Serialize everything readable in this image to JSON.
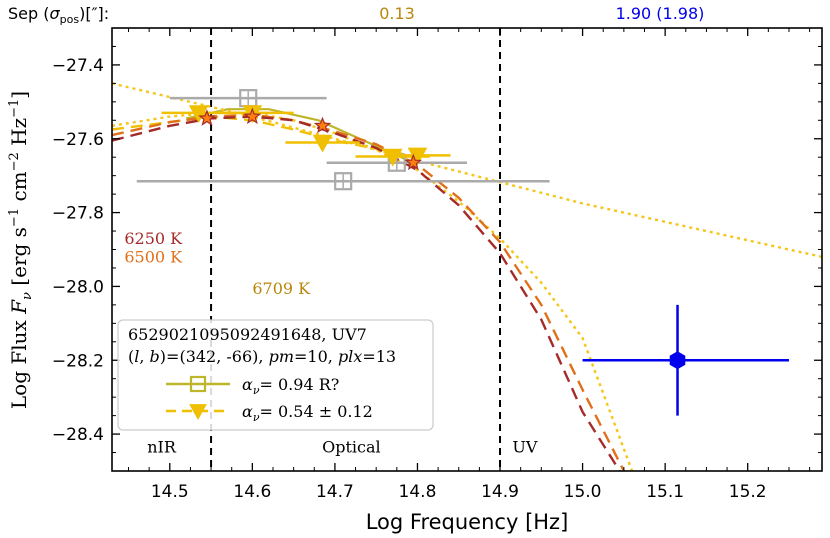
{
  "chart_data": {
    "type": "scatter",
    "xlabel": "Log Frequency [Hz]",
    "ylabel_main": "Log Flux ",
    "ylabel_sym": "F",
    "ylabel_sub": "ν",
    "ylabel_units": " [erg s",
    "ylabel_units2": " cm",
    "ylabel_units3": " Hz",
    "ylabel_exp1": "−1",
    "ylabel_exp2": "−2",
    "ylabel_exp3": "−1",
    "xlim": [
      14.43,
      15.29
    ],
    "ylim": [
      -28.5,
      -27.3
    ],
    "xticks": [
      14.5,
      14.6,
      14.7,
      14.8,
      14.9,
      15.0,
      15.1,
      15.2
    ],
    "xtick_labels": [
      "14.5",
      "14.6",
      "14.7",
      "14.8",
      "14.9",
      "15.0",
      "15.1",
      "15.2"
    ],
    "yticks": [
      -27.4,
      -27.6,
      -27.8,
      -28.0,
      -28.2,
      -28.4
    ],
    "ytick_labels": [
      "−27.4",
      "−27.6",
      "−27.8",
      "−28.0",
      "−28.2",
      "−28.4"
    ],
    "band_boundaries": [
      14.55,
      14.9
    ],
    "band_labels": [
      {
        "text": "nIR",
        "x": 14.49,
        "y": -28.45
      },
      {
        "text": "Optical",
        "x": 14.72,
        "y": -28.45
      },
      {
        "text": "UV",
        "x": 14.915,
        "y": -28.45
      }
    ],
    "top_header": {
      "label": "Sep",
      "sigma": "σ",
      "sigma_sub": "pos",
      "unit": "[″]:",
      "value_mid": "0.13",
      "value_right": "1.90",
      "value_right_paren": "(1.98)",
      "color_mid": "#b8860b",
      "color_right": "#0000ee"
    },
    "temperature_labels": [
      {
        "text": "6250 K",
        "color": "#a52a2a",
        "x": 14.445,
        "y": -27.885
      },
      {
        "text": "6500 K",
        "color": "#e0701a",
        "x": 14.445,
        "y": -27.935
      },
      {
        "text": "6709 K",
        "color": "#b8860b",
        "x": 14.6,
        "y": -28.02
      }
    ],
    "series": [
      {
        "name": "gray squares (alpha 0.94)",
        "color": "#aaaaaa",
        "marker": "square",
        "points": [
          {
            "x": 14.595,
            "y": -27.49,
            "xerr": 0.095
          },
          {
            "x": 14.71,
            "y": -27.715,
            "xerr": 0.25
          },
          {
            "x": 14.775,
            "y": -27.665,
            "xerr": 0.085
          }
        ]
      },
      {
        "name": "yellow triangles (alpha 0.54)",
        "color": "#f0c000",
        "marker": "triangle-down",
        "points": [
          {
            "x": 14.535,
            "y": -27.53,
            "xerr": 0.045
          },
          {
            "x": 14.6,
            "y": -27.53,
            "xerr": 0.05
          },
          {
            "x": 14.685,
            "y": -27.61,
            "xerr": 0.045
          },
          {
            "x": 14.8,
            "y": -27.645,
            "xerr": 0.04
          },
          {
            "x": 14.77,
            "y": -27.648,
            "xerr": 0.045
          }
        ]
      },
      {
        "name": "orange stars",
        "color": "#ff7f0e",
        "marker": "star",
        "points": [
          {
            "x": 14.545,
            "y": -27.545
          },
          {
            "x": 14.6,
            "y": -27.54
          },
          {
            "x": 14.685,
            "y": -27.565
          },
          {
            "x": 14.795,
            "y": -27.665
          }
        ]
      },
      {
        "name": "UV point",
        "color": "#0000ee",
        "marker": "hexagon",
        "points": [
          {
            "x": 15.115,
            "y": -28.2,
            "xerr_lo": 0.115,
            "xerr_hi": 0.135,
            "yerr": 0.15
          }
        ]
      }
    ],
    "curves": [
      {
        "name": "olive fit",
        "color": "#bdb52a",
        "style": "solid",
        "points": [
          [
            14.52,
            -27.545
          ],
          [
            14.57,
            -27.52
          ],
          [
            14.62,
            -27.52
          ],
          [
            14.68,
            -27.55
          ],
          [
            14.74,
            -27.61
          ],
          [
            14.8,
            -27.67
          ]
        ]
      },
      {
        "name": "yellow dashed fit",
        "color": "#f0c000",
        "style": "dashed",
        "points": [
          [
            14.43,
            -27.575
          ],
          [
            14.5,
            -27.555
          ],
          [
            14.55,
            -27.54
          ],
          [
            14.6,
            -27.55
          ],
          [
            14.65,
            -27.575
          ],
          [
            14.7,
            -27.605
          ],
          [
            14.78,
            -27.64
          ],
          [
            14.8,
            -27.655
          ]
        ]
      },
      {
        "name": "6709 K blackbody",
        "color": "#f5c518",
        "style": "dotted",
        "points": [
          [
            14.43,
            -27.565
          ],
          [
            14.5,
            -27.54
          ],
          [
            14.55,
            -27.53
          ],
          [
            14.6,
            -27.53
          ],
          [
            14.65,
            -27.55
          ],
          [
            14.7,
            -27.585
          ],
          [
            14.75,
            -27.63
          ],
          [
            14.8,
            -27.685
          ],
          [
            14.85,
            -27.77
          ],
          [
            14.9,
            -27.87
          ],
          [
            14.95,
            -27.99
          ],
          [
            15.0,
            -28.14
          ],
          [
            15.06,
            -28.5
          ]
        ]
      },
      {
        "name": "power law",
        "color": "#f5c518",
        "style": "dotted",
        "points": [
          [
            14.43,
            -27.45
          ],
          [
            14.6,
            -27.54
          ],
          [
            14.8,
            -27.66
          ],
          [
            15.0,
            -27.775
          ],
          [
            15.29,
            -27.92
          ]
        ]
      },
      {
        "name": "6500 K blackbody",
        "color": "#e0701a",
        "style": "dashed",
        "points": [
          [
            14.43,
            -27.59
          ],
          [
            14.5,
            -27.555
          ],
          [
            14.55,
            -27.54
          ],
          [
            14.6,
            -27.535
          ],
          [
            14.65,
            -27.55
          ],
          [
            14.7,
            -27.58
          ],
          [
            14.75,
            -27.615
          ],
          [
            14.8,
            -27.67
          ],
          [
            14.85,
            -27.76
          ],
          [
            14.9,
            -27.88
          ],
          [
            14.95,
            -28.05
          ],
          [
            15.0,
            -28.28
          ],
          [
            15.05,
            -28.5
          ]
        ]
      },
      {
        "name": "6250 K blackbody",
        "color": "#a52a2a",
        "style": "dashed",
        "points": [
          [
            14.43,
            -27.605
          ],
          [
            14.5,
            -27.565
          ],
          [
            14.55,
            -27.545
          ],
          [
            14.6,
            -27.54
          ],
          [
            14.65,
            -27.55
          ],
          [
            14.7,
            -27.585
          ],
          [
            14.75,
            -27.625
          ],
          [
            14.8,
            -27.685
          ],
          [
            14.85,
            -27.78
          ],
          [
            14.9,
            -27.91
          ],
          [
            14.95,
            -28.09
          ],
          [
            15.0,
            -28.34
          ],
          [
            15.045,
            -28.5
          ]
        ]
      }
    ],
    "legend": {
      "position": "lower-left",
      "header_line1": "6529021095092491648, UV7",
      "header_l": "l",
      "header_b": "b",
      "header_vals": "=(342, -66), ",
      "header_pm": "pm",
      "header_pm_val": "=10, ",
      "header_plx": "plx",
      "header_plx_val": "=13",
      "entries": [
        {
          "alpha_sym": "α",
          "alpha_sub": "ν",
          "value": "=  0.94",
          "note": "R?",
          "color": "#bdb52a",
          "marker": "square"
        },
        {
          "alpha_sym": "α",
          "alpha_sub": "ν",
          "value": "=  0.54 ± 0.12",
          "note": "",
          "color": "#f0c000",
          "marker": "triangle-down"
        }
      ]
    }
  }
}
